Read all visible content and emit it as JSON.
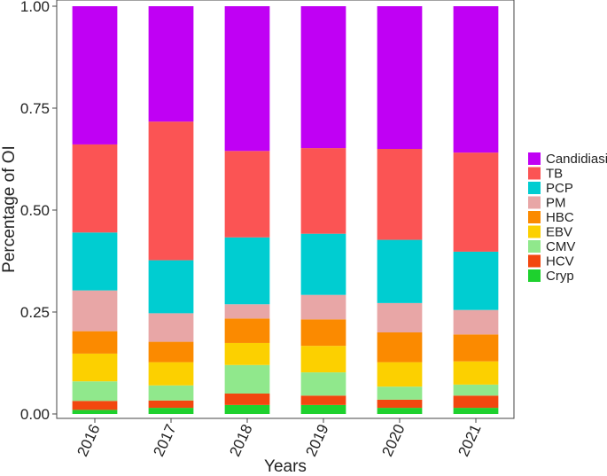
{
  "chart_data": {
    "type": "stacked_bar",
    "xlabel": "Years",
    "ylabel": "Percentage of OI",
    "ylim": [
      0,
      1
    ],
    "yticks": [
      0,
      0.25,
      0.5,
      0.75,
      1
    ],
    "ytick_labels": [
      "0.00",
      "0.25",
      "0.50",
      "0.75",
      "1.00"
    ],
    "categories": [
      "2016",
      "2017",
      "2018",
      "2019",
      "2020",
      "2021"
    ],
    "legend_position": "right",
    "series": [
      {
        "name": "Cryp",
        "color": "#1ed12e",
        "values": [
          0.01,
          0.015,
          0.022,
          0.022,
          0.015,
          0.015
        ]
      },
      {
        "name": "HCV",
        "color": "#f2470f",
        "values": [
          0.022,
          0.018,
          0.028,
          0.023,
          0.02,
          0.03
        ]
      },
      {
        "name": "CMV",
        "color": "#90e88c",
        "values": [
          0.048,
          0.037,
          0.07,
          0.057,
          0.032,
          0.027
        ]
      },
      {
        "name": "EBV",
        "color": "#fcd000",
        "values": [
          0.068,
          0.057,
          0.054,
          0.065,
          0.06,
          0.057
        ]
      },
      {
        "name": "HBC",
        "color": "#fb8a00",
        "values": [
          0.055,
          0.05,
          0.06,
          0.065,
          0.073,
          0.066
        ]
      },
      {
        "name": "PM",
        "color": "#e8a6a6",
        "values": [
          0.1,
          0.07,
          0.035,
          0.06,
          0.072,
          0.06
        ]
      },
      {
        "name": "PCP",
        "color": "#00cdd1",
        "values": [
          0.142,
          0.13,
          0.164,
          0.15,
          0.155,
          0.143
        ]
      },
      {
        "name": "TB",
        "color": "#fb5454",
        "values": [
          0.216,
          0.34,
          0.212,
          0.21,
          0.223,
          0.243
        ]
      },
      {
        "name": "Candidiasis",
        "color": "#c000f4",
        "values": [
          0.339,
          0.283,
          0.355,
          0.348,
          0.35,
          0.359
        ]
      }
    ],
    "legend_order": [
      "Candidiasis",
      "TB",
      "PCP",
      "PM",
      "HBC",
      "EBV",
      "CMV",
      "HCV",
      "Cryp"
    ]
  }
}
